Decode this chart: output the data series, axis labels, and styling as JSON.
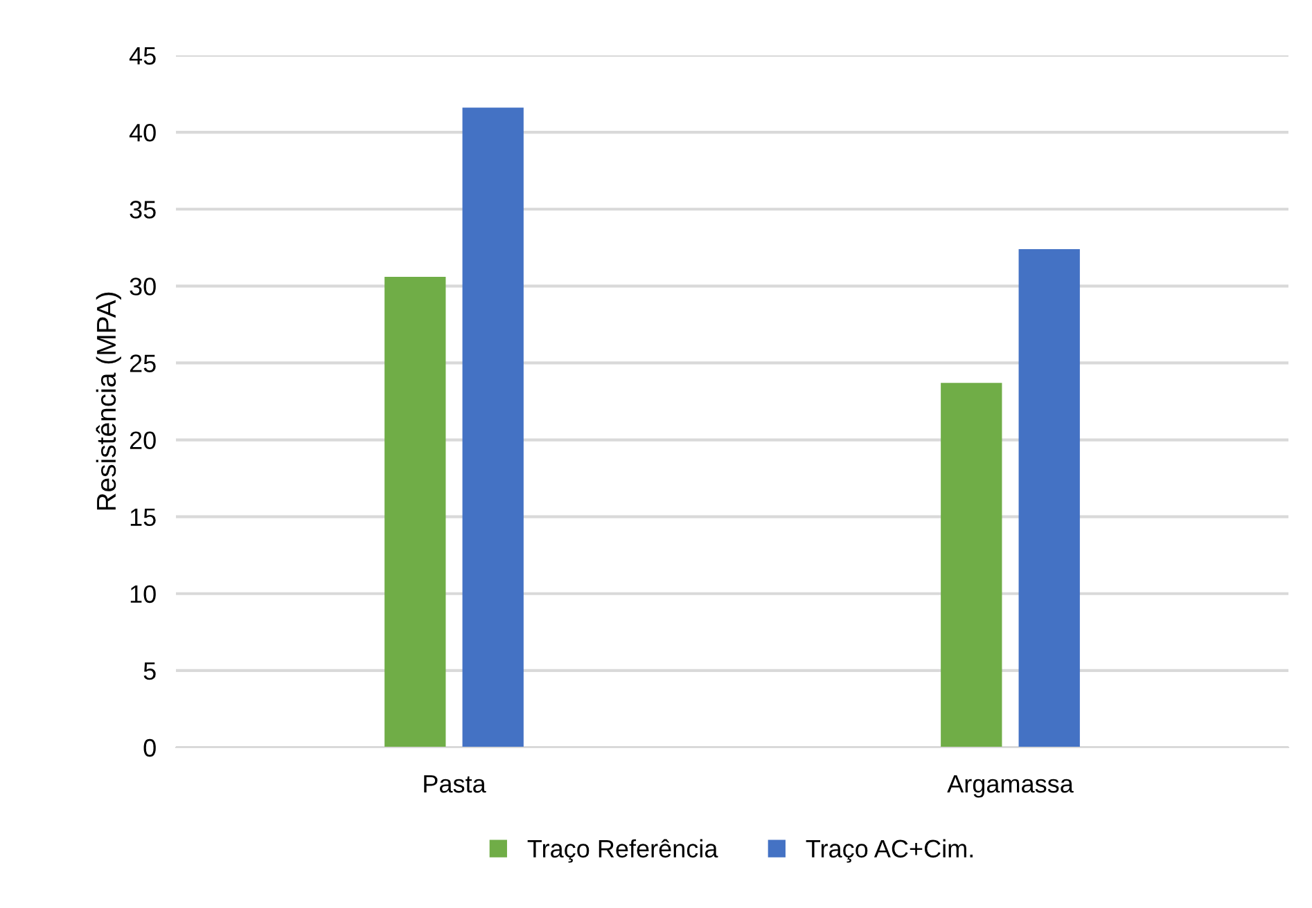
{
  "chart_data": {
    "type": "bar",
    "ylabel": "Resistência (MPA)",
    "categories": [
      "Pasta",
      "Argamassa"
    ],
    "series": [
      {
        "name": "Traço Referência",
        "color": "#70ad47",
        "values": [
          30.6,
          23.7
        ]
      },
      {
        "name": "Traço AC+Cim.",
        "color": "#4472c4",
        "values": [
          41.6,
          32.4
        ]
      }
    ],
    "ylim": [
      0,
      45
    ],
    "yticks": [
      0,
      5,
      10,
      15,
      20,
      25,
      30,
      35,
      40,
      45
    ],
    "grid": "y",
    "legend": "bottom"
  }
}
